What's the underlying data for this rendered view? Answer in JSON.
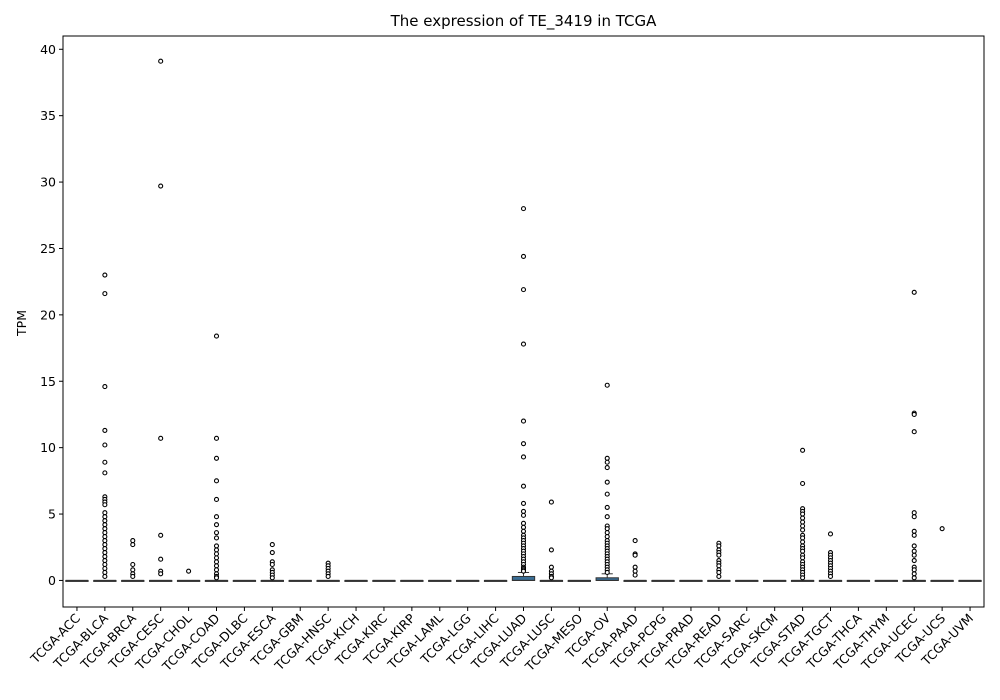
{
  "chart_data": {
    "type": "box",
    "title": "The expression of TE_3419 in TCGA",
    "xlabel": "",
    "ylabel": "TPM",
    "ylim": [
      -2,
      41
    ],
    "yticks": [
      0,
      5,
      10,
      15,
      20,
      25,
      30,
      35,
      40
    ],
    "grid": false,
    "box_color": "#3a6e96",
    "categories": [
      "TCGA-ACC",
      "TCGA-BLCA",
      "TCGA-BRCA",
      "TCGA-CESC",
      "TCGA-CHOL",
      "TCGA-COAD",
      "TCGA-DLBC",
      "TCGA-ESCA",
      "TCGA-GBM",
      "TCGA-HNSC",
      "TCGA-KICH",
      "TCGA-KIRC",
      "TCGA-KIRP",
      "TCGA-LAML",
      "TCGA-LGG",
      "TCGA-LIHC",
      "TCGA-LUAD",
      "TCGA-LUSC",
      "TCGA-MESO",
      "TCGA-OV",
      "TCGA-PAAD",
      "TCGA-PCPG",
      "TCGA-PRAD",
      "TCGA-READ",
      "TCGA-SARC",
      "TCGA-SKCM",
      "TCGA-STAD",
      "TCGA-TGCT",
      "TCGA-THCA",
      "TCGA-THYM",
      "TCGA-UCEC",
      "TCGA-UCS",
      "TCGA-UVM"
    ],
    "boxes": [
      {
        "q1": 0,
        "median": 0,
        "q3": 0,
        "whisker_high": 0,
        "outliers": []
      },
      {
        "q1": 0,
        "median": 0,
        "q3": 0,
        "whisker_high": 0,
        "outliers": [
          23.0,
          21.6,
          14.6,
          11.3,
          10.2,
          8.9,
          8.1,
          6.3,
          6.1,
          5.9,
          5.7,
          5.1,
          4.8,
          4.5,
          4.2,
          3.9,
          3.6,
          3.3,
          3.0,
          2.7,
          2.4,
          2.1,
          1.8,
          1.5,
          1.2,
          0.9,
          0.6,
          0.3
        ]
      },
      {
        "q1": 0,
        "median": 0,
        "q3": 0,
        "whisker_high": 0,
        "outliers": [
          3.0,
          2.7,
          1.2,
          0.8,
          0.5,
          0.3
        ]
      },
      {
        "q1": 0,
        "median": 0,
        "q3": 0,
        "whisker_high": 0,
        "outliers": [
          39.1,
          29.7,
          10.7,
          3.4,
          1.6,
          0.7,
          0.5
        ]
      },
      {
        "q1": 0,
        "median": 0,
        "q3": 0,
        "whisker_high": 0,
        "outliers": [
          0.7
        ]
      },
      {
        "q1": 0,
        "median": 0,
        "q3": 0,
        "whisker_high": 0,
        "outliers": [
          18.4,
          10.7,
          9.2,
          7.5,
          6.1,
          4.8,
          4.2,
          3.6,
          3.2,
          2.6,
          2.3,
          2.0,
          1.7,
          1.4,
          1.1,
          0.8,
          0.5,
          0.3,
          0.2
        ]
      },
      {
        "q1": 0,
        "median": 0,
        "q3": 0,
        "whisker_high": 0,
        "outliers": []
      },
      {
        "q1": 0,
        "median": 0,
        "q3": 0,
        "whisker_high": 0,
        "outliers": [
          2.7,
          2.1,
          1.4,
          1.2,
          0.8,
          0.6,
          0.4,
          0.2
        ]
      },
      {
        "q1": 0,
        "median": 0,
        "q3": 0,
        "whisker_high": 0,
        "outliers": []
      },
      {
        "q1": 0,
        "median": 0,
        "q3": 0,
        "whisker_high": 0,
        "outliers": [
          1.3,
          1.1,
          0.9,
          0.7,
          0.5,
          0.3
        ]
      },
      {
        "q1": 0,
        "median": 0,
        "q3": 0,
        "whisker_high": 0,
        "outliers": []
      },
      {
        "q1": 0,
        "median": 0,
        "q3": 0,
        "whisker_high": 0,
        "outliers": []
      },
      {
        "q1": 0,
        "median": 0,
        "q3": 0,
        "whisker_high": 0,
        "outliers": []
      },
      {
        "q1": 0,
        "median": 0,
        "q3": 0,
        "whisker_high": 0,
        "outliers": []
      },
      {
        "q1": 0,
        "median": 0,
        "q3": 0,
        "whisker_high": 0,
        "outliers": []
      },
      {
        "q1": 0,
        "median": 0,
        "q3": 0,
        "whisker_high": 0,
        "outliers": []
      },
      {
        "q1": 0,
        "median": 0,
        "q3": 0.3,
        "whisker_high": 0.6,
        "outliers": [
          28.0,
          24.4,
          21.9,
          17.8,
          12.0,
          10.3,
          9.3,
          7.1,
          5.8,
          5.2,
          4.9,
          4.3,
          4.0,
          3.7,
          3.4,
          3.2,
          3.0,
          2.8,
          2.6,
          2.4,
          2.2,
          2.0,
          1.8,
          1.6,
          1.4,
          1.2,
          1.0,
          0.9,
          0.8,
          0.7
        ]
      },
      {
        "q1": 0,
        "median": 0,
        "q3": 0,
        "whisker_high": 0,
        "outliers": [
          5.9,
          2.3,
          1.0,
          0.7,
          0.5,
          0.3,
          0.2
        ]
      },
      {
        "q1": 0,
        "median": 0,
        "q3": 0,
        "whisker_high": 0,
        "outliers": []
      },
      {
        "q1": 0,
        "median": 0,
        "q3": 0.2,
        "whisker_high": 0.5,
        "outliers": [
          14.7,
          9.2,
          8.9,
          8.5,
          7.4,
          6.5,
          5.5,
          4.8,
          4.1,
          3.9,
          3.6,
          3.3,
          3.0,
          2.8,
          2.6,
          2.4,
          2.2,
          2.0,
          1.8,
          1.6,
          1.4,
          1.2,
          1.0,
          0.8,
          0.6
        ]
      },
      {
        "q1": 0,
        "median": 0,
        "q3": 0,
        "whisker_high": 0,
        "outliers": [
          3.0,
          2.0,
          1.9,
          1.0,
          0.7,
          0.4
        ]
      },
      {
        "q1": 0,
        "median": 0,
        "q3": 0,
        "whisker_high": 0,
        "outliers": []
      },
      {
        "q1": 0,
        "median": 0,
        "q3": 0,
        "whisker_high": 0,
        "outliers": []
      },
      {
        "q1": 0,
        "median": 0,
        "q3": 0,
        "whisker_high": 0,
        "outliers": [
          2.8,
          2.6,
          2.3,
          2.1,
          1.9,
          1.5,
          1.3,
          1.1,
          0.8,
          0.6,
          0.3
        ]
      },
      {
        "q1": 0,
        "median": 0,
        "q3": 0,
        "whisker_high": 0,
        "outliers": []
      },
      {
        "q1": 0,
        "median": 0,
        "q3": 0,
        "whisker_high": 0,
        "outliers": []
      },
      {
        "q1": 0,
        "median": 0,
        "q3": 0,
        "whisker_high": 0,
        "outliers": [
          9.8,
          7.3,
          5.4,
          5.2,
          5.0,
          4.7,
          4.4,
          4.1,
          3.8,
          3.4,
          3.2,
          2.9,
          2.6,
          2.4,
          2.2,
          1.9,
          1.7,
          1.4,
          1.2,
          1.0,
          0.8,
          0.6,
          0.4,
          0.2
        ]
      },
      {
        "q1": 0,
        "median": 0,
        "q3": 0,
        "whisker_high": 0,
        "outliers": [
          3.5,
          2.1,
          1.9,
          1.7,
          1.5,
          1.3,
          1.1,
          0.9,
          0.7,
          0.5,
          0.3
        ]
      },
      {
        "q1": 0,
        "median": 0,
        "q3": 0,
        "whisker_high": 0,
        "outliers": []
      },
      {
        "q1": 0,
        "median": 0,
        "q3": 0,
        "whisker_high": 0,
        "outliers": []
      },
      {
        "q1": 0,
        "median": 0,
        "q3": 0,
        "whisker_high": 0,
        "outliers": [
          21.7,
          12.6,
          12.5,
          11.2,
          5.1,
          4.8,
          3.7,
          3.4,
          2.6,
          2.2,
          1.9,
          1.5,
          1.0,
          0.8,
          0.5,
          0.2
        ]
      },
      {
        "q1": 0,
        "median": 0,
        "q3": 0,
        "whisker_high": 0,
        "outliers": [
          3.9
        ]
      },
      {
        "q1": 0,
        "median": 0,
        "q3": 0,
        "whisker_high": 0,
        "outliers": []
      }
    ]
  }
}
